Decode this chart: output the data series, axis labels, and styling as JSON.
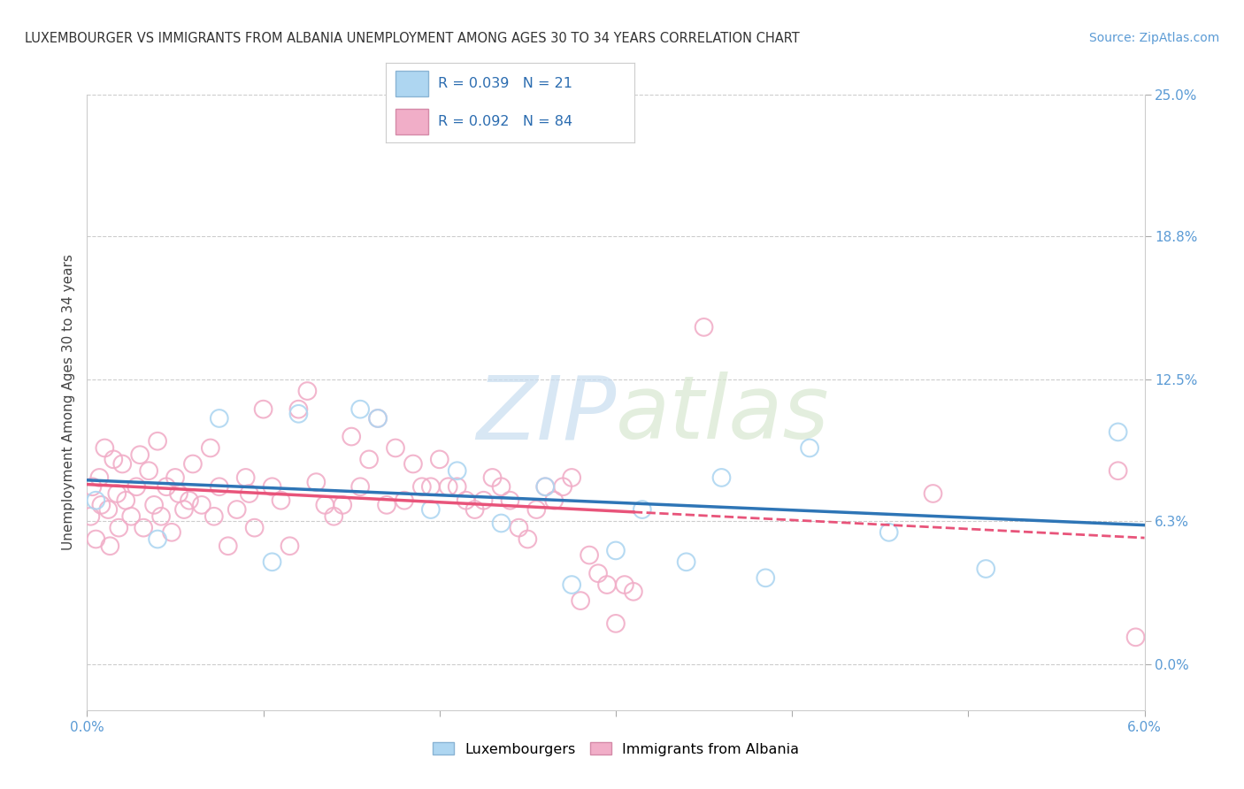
{
  "title": "LUXEMBOURGER VS IMMIGRANTS FROM ALBANIA UNEMPLOYMENT AMONG AGES 30 TO 34 YEARS CORRELATION CHART",
  "source": "Source: ZipAtlas.com",
  "ylabel_label": "Unemployment Among Ages 30 to 34 years",
  "legend_lux": "Luxembourgers",
  "legend_alb": "Immigrants from Albania",
  "lux_R": "0.039",
  "lux_N": "21",
  "alb_R": "0.092",
  "alb_N": "84",
  "lux_color": "#aed6f1",
  "alb_color": "#f1aec8",
  "lux_line_color": "#2e75b6",
  "alb_line_color": "#e8547a",
  "watermark_color": "#ddeeff",
  "background_color": "#ffffff",
  "grid_color": "#cccccc",
  "tick_color": "#5b9bd5",
  "xlim": [
    0.0,
    6.0
  ],
  "ylim": [
    -2.0,
    25.0
  ],
  "yticks": [
    0.0,
    6.3,
    12.5,
    18.8,
    25.0
  ],
  "xticks": [
    0.0,
    1.0,
    2.0,
    3.0,
    4.0,
    5.0,
    6.0
  ],
  "lux_x": [
    0.05,
    0.4,
    0.75,
    1.05,
    1.2,
    1.55,
    1.65,
    1.95,
    2.1,
    2.35,
    2.6,
    2.75,
    3.0,
    3.15,
    3.4,
    3.6,
    3.85,
    4.1,
    4.55,
    5.1,
    5.85
  ],
  "lux_y": [
    7.2,
    5.5,
    10.8,
    4.5,
    11.0,
    11.2,
    10.8,
    6.8,
    8.5,
    6.2,
    7.8,
    3.5,
    5.0,
    6.8,
    4.5,
    8.2,
    3.8,
    9.5,
    5.8,
    4.2,
    10.2
  ],
  "alb_x": [
    0.02,
    0.03,
    0.05,
    0.07,
    0.08,
    0.1,
    0.12,
    0.13,
    0.15,
    0.17,
    0.18,
    0.2,
    0.22,
    0.25,
    0.28,
    0.3,
    0.32,
    0.35,
    0.38,
    0.4,
    0.42,
    0.45,
    0.48,
    0.5,
    0.52,
    0.55,
    0.58,
    0.6,
    0.65,
    0.7,
    0.72,
    0.75,
    0.8,
    0.85,
    0.9,
    0.92,
    0.95,
    1.0,
    1.05,
    1.1,
    1.15,
    1.2,
    1.25,
    1.3,
    1.35,
    1.4,
    1.45,
    1.5,
    1.55,
    1.6,
    1.65,
    1.7,
    1.75,
    1.8,
    1.85,
    1.9,
    1.95,
    2.0,
    2.05,
    2.1,
    2.15,
    2.2,
    2.25,
    2.3,
    2.35,
    2.4,
    2.45,
    2.5,
    2.55,
    2.6,
    2.65,
    2.7,
    2.75,
    2.8,
    2.85,
    2.9,
    2.95,
    3.0,
    3.05,
    3.1,
    3.5,
    4.8,
    5.85,
    5.95
  ],
  "alb_y": [
    6.5,
    7.8,
    5.5,
    8.2,
    7.0,
    9.5,
    6.8,
    5.2,
    9.0,
    7.5,
    6.0,
    8.8,
    7.2,
    6.5,
    7.8,
    9.2,
    6.0,
    8.5,
    7.0,
    9.8,
    6.5,
    7.8,
    5.8,
    8.2,
    7.5,
    6.8,
    7.2,
    8.8,
    7.0,
    9.5,
    6.5,
    7.8,
    5.2,
    6.8,
    8.2,
    7.5,
    6.0,
    11.2,
    7.8,
    7.2,
    5.2,
    11.2,
    12.0,
    8.0,
    7.0,
    6.5,
    7.0,
    10.0,
    7.8,
    9.0,
    10.8,
    7.0,
    9.5,
    7.2,
    8.8,
    7.8,
    7.8,
    9.0,
    7.8,
    7.8,
    7.2,
    6.8,
    7.2,
    8.2,
    7.8,
    7.2,
    6.0,
    5.5,
    6.8,
    7.8,
    7.2,
    7.8,
    8.2,
    2.8,
    4.8,
    4.0,
    3.5,
    1.8,
    3.5,
    3.2,
    14.8,
    7.5,
    8.5,
    1.2
  ]
}
